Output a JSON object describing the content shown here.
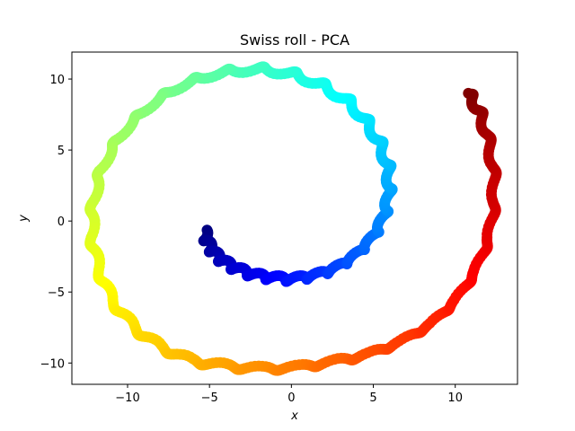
{
  "chart_data": {
    "type": "scatter",
    "title": "Swiss roll - PCA",
    "xlabel": "x",
    "ylabel": "y",
    "xlim": [
      -13.4,
      13.8
    ],
    "ylim": [
      -11.5,
      11.9
    ],
    "xticks": [
      -10,
      -5,
      0,
      5,
      10
    ],
    "yticks": [
      -10,
      -5,
      0,
      5,
      10
    ],
    "tick_labels_x": [
      "−10",
      "−5",
      "0",
      "5",
      "10"
    ],
    "tick_labels_y": [
      "−10",
      "−5",
      "0",
      "5",
      "10"
    ],
    "grid": false,
    "colormap": "jet",
    "color_by": "t",
    "point_color_range": [
      "#0000ff",
      "#800000"
    ],
    "series": [
      {
        "points": [
          {
            "t": 0.0,
            "x": -5.3,
            "y": -0.8
          },
          {
            "t": 0.03,
            "x": -5.1,
            "y": -1.6
          },
          {
            "t": 0.06,
            "x": -4.7,
            "y": -2.3
          },
          {
            "t": 0.09,
            "x": -4.1,
            "y": -2.9
          },
          {
            "t": 0.12,
            "x": -3.3,
            "y": -3.4
          },
          {
            "t": 0.15,
            "x": -2.3,
            "y": -3.8
          },
          {
            "t": 0.18,
            "x": -1.2,
            "y": -4.0
          },
          {
            "t": 0.21,
            "x": 0.0,
            "y": -4.1
          },
          {
            "t": 0.24,
            "x": 1.2,
            "y": -3.9
          },
          {
            "t": 0.27,
            "x": 2.4,
            "y": -3.5
          },
          {
            "t": 0.3,
            "x": 3.5,
            "y": -2.8
          },
          {
            "t": 0.33,
            "x": 4.5,
            "y": -1.8
          },
          {
            "t": 0.36,
            "x": 5.3,
            "y": -0.6
          },
          {
            "t": 0.39,
            "x": 5.8,
            "y": 0.8
          },
          {
            "t": 0.42,
            "x": 6.0,
            "y": 2.3
          },
          {
            "t": 0.45,
            "x": 5.9,
            "y": 3.9
          },
          {
            "t": 0.48,
            "x": 5.4,
            "y": 5.5
          },
          {
            "t": 0.51,
            "x": 4.6,
            "y": 7.0
          },
          {
            "t": 0.54,
            "x": 3.5,
            "y": 8.4
          },
          {
            "t": 0.57,
            "x": 2.0,
            "y": 9.5
          },
          {
            "t": 0.6,
            "x": 0.3,
            "y": 10.3
          },
          {
            "t": 0.63,
            "x": -1.6,
            "y": 10.7
          },
          {
            "t": 0.66,
            "x": -3.6,
            "y": 10.6
          },
          {
            "t": 0.69,
            "x": -5.6,
            "y": 10.1
          },
          {
            "t": 0.72,
            "x": -7.5,
            "y": 9.1
          },
          {
            "t": 0.75,
            "x": -9.2,
            "y": 7.6
          },
          {
            "t": 0.78,
            "x": -10.6,
            "y": 5.8
          },
          {
            "t": 0.81,
            "x": -11.6,
            "y": 3.7
          },
          {
            "t": 0.84,
            "x": -12.1,
            "y": 1.4
          },
          {
            "t": 0.87,
            "x": -12.2,
            "y": -1.0
          },
          {
            "t": 0.9,
            "x": -11.8,
            "y": -3.3
          },
          {
            "t": 0.93,
            "x": -11.0,
            "y": -5.5
          },
          {
            "t": 0.96,
            "x": -9.7,
            "y": -7.4
          },
          {
            "t": 0.99,
            "x": -8.1,
            "y": -8.8
          },
          {
            "t": 1.02,
            "x": -6.2,
            "y": -9.8
          },
          {
            "t": 1.05,
            "x": -4.1,
            "y": -10.2
          },
          {
            "t": 1.08,
            "x": -1.9,
            "y": -10.4
          },
          {
            "t": 1.11,
            "x": 0.4,
            "y": -10.3
          },
          {
            "t": 1.14,
            "x": 2.6,
            "y": -9.9
          },
          {
            "t": 1.17,
            "x": 4.7,
            "y": -9.4
          },
          {
            "t": 1.2,
            "x": 6.7,
            "y": -8.5
          },
          {
            "t": 1.23,
            "x": 8.6,
            "y": -7.2
          },
          {
            "t": 1.26,
            "x": 10.1,
            "y": -5.5
          },
          {
            "t": 1.29,
            "x": 11.3,
            "y": -3.4
          },
          {
            "t": 1.32,
            "x": 12.1,
            "y": -1.0
          },
          {
            "t": 1.35,
            "x": 12.4,
            "y": 1.6
          },
          {
            "t": 1.38,
            "x": 12.3,
            "y": 4.1
          },
          {
            "t": 1.41,
            "x": 11.9,
            "y": 6.3
          },
          {
            "t": 1.44,
            "x": 11.4,
            "y": 7.9
          },
          {
            "t": 1.47,
            "x": 10.8,
            "y": 9.0
          }
        ]
      }
    ]
  }
}
